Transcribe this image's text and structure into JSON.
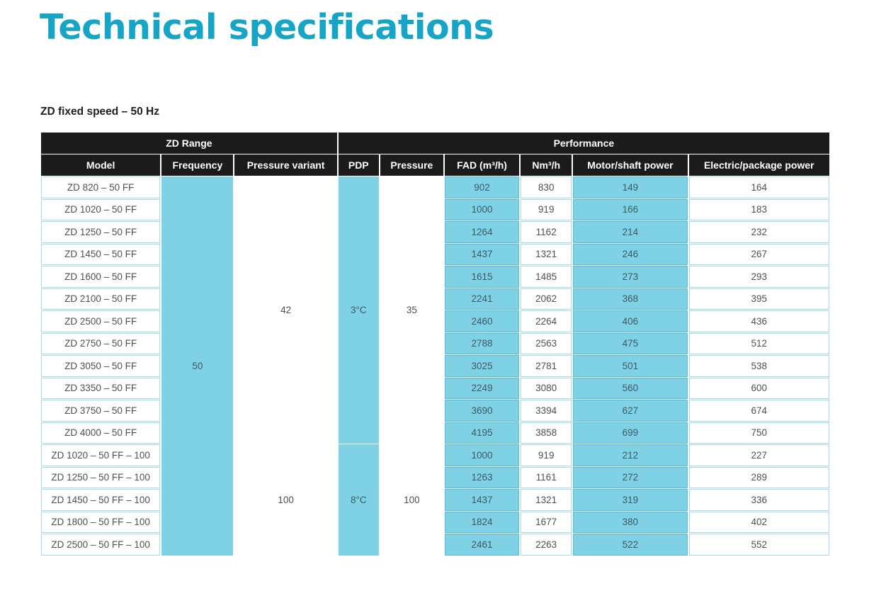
{
  "title": "Technical specifications",
  "subtitle": "ZD fixed speed – 50 Hz",
  "groups": {
    "zd_range": "ZD Range",
    "performance": "Performance"
  },
  "headers": {
    "model": "Model",
    "frequency": "Frequency",
    "pressure_variant": "Pressure variant",
    "pdp": "PDP",
    "pressure": "Pressure",
    "fad": "FAD (m³/h)",
    "nm3h": "Nm³/h",
    "motor_power": "Motor/shaft power",
    "electric_power": "Electric/package power"
  },
  "colors": {
    "title": "#16a5c6",
    "header_bg": "#1b1b1b",
    "highlight": "#7fd1e5"
  },
  "merged": {
    "frequency": "50",
    "pressure_variant_a": "42",
    "pressure_variant_b": "100",
    "pdp_a": "3°C",
    "pdp_b": "8°C",
    "pressure_a": "35",
    "pressure_b": "100"
  },
  "rows": [
    {
      "model": "ZD 820 – 50 FF",
      "fad": "902",
      "nm3h": "830",
      "motor": "149",
      "electric": "164"
    },
    {
      "model": "ZD 1020 – 50 FF",
      "fad": "1000",
      "nm3h": "919",
      "motor": "166",
      "electric": "183"
    },
    {
      "model": "ZD 1250 – 50 FF",
      "fad": "1264",
      "nm3h": "1162",
      "motor": "214",
      "electric": "232"
    },
    {
      "model": "ZD 1450 – 50 FF",
      "fad": "1437",
      "nm3h": "1321",
      "motor": "246",
      "electric": "267"
    },
    {
      "model": "ZD 1600 – 50 FF",
      "fad": "1615",
      "nm3h": "1485",
      "motor": "273",
      "electric": "293"
    },
    {
      "model": "ZD 2100 – 50 FF",
      "fad": "2241",
      "nm3h": "2062",
      "motor": "368",
      "electric": "395"
    },
    {
      "model": "ZD 2500 – 50 FF",
      "fad": "2460",
      "nm3h": "2264",
      "motor": "406",
      "electric": "436"
    },
    {
      "model": "ZD 2750 – 50 FF",
      "fad": "2788",
      "nm3h": "2563",
      "motor": "475",
      "electric": "512"
    },
    {
      "model": "ZD 3050 – 50 FF",
      "fad": "3025",
      "nm3h": "2781",
      "motor": "501",
      "electric": "538"
    },
    {
      "model": "ZD 3350 – 50 FF",
      "fad": "2249",
      "nm3h": "3080",
      "motor": "560",
      "electric": "600"
    },
    {
      "model": "ZD 3750 – 50 FF",
      "fad": "3690",
      "nm3h": "3394",
      "motor": "627",
      "electric": "674"
    },
    {
      "model": "ZD 4000 – 50 FF",
      "fad": "4195",
      "nm3h": "3858",
      "motor": "699",
      "electric": "750"
    },
    {
      "model": "ZD 1020 – 50 FF – 100",
      "fad": "1000",
      "nm3h": "919",
      "motor": "212",
      "electric": "227"
    },
    {
      "model": "ZD 1250 – 50 FF – 100",
      "fad": "1263",
      "nm3h": "1161",
      "motor": "272",
      "electric": "289"
    },
    {
      "model": "ZD 1450 – 50 FF – 100",
      "fad": "1437",
      "nm3h": "1321",
      "motor": "319",
      "electric": "336"
    },
    {
      "model": "ZD 1800 – 50 FF – 100",
      "fad": "1824",
      "nm3h": "1677",
      "motor": "380",
      "electric": "402"
    },
    {
      "model": "ZD 2500 – 50 FF – 100",
      "fad": "2461",
      "nm3h": "2263",
      "motor": "522",
      "electric": "552"
    }
  ]
}
